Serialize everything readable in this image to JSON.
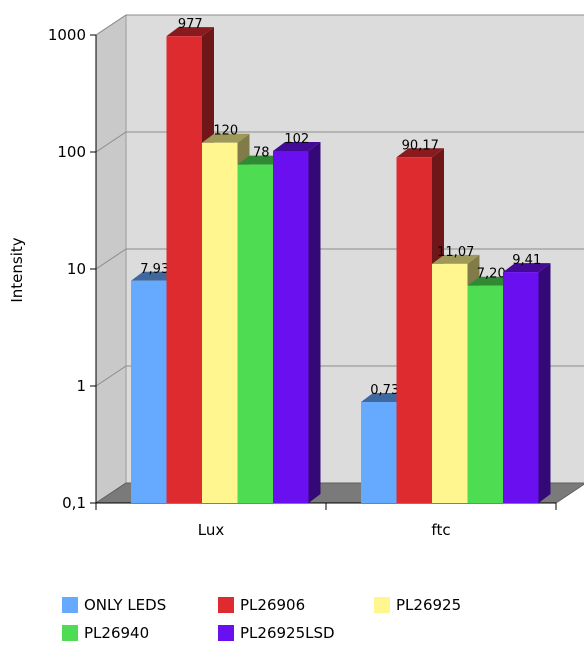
{
  "chart_data": {
    "type": "bar",
    "title": "",
    "xlabel": "",
    "ylabel": "Intensity",
    "yscale": "log",
    "ylim": [
      0.1,
      1000
    ],
    "ytick_labels": [
      "1000",
      "100",
      "10",
      "1",
      "0,1"
    ],
    "grid": true,
    "legend_position": "bottom",
    "categories": [
      "Lux",
      "ftc"
    ],
    "series": [
      {
        "name": "ONLY LEDS",
        "color": "#66AAFF",
        "values": [
          7.93,
          0.73
        ],
        "labels": [
          "7,93",
          "0,73"
        ]
      },
      {
        "name": "PL26906",
        "color": "#DD2B30",
        "values": [
          977,
          90.17
        ],
        "labels": [
          "977",
          "90,17"
        ]
      },
      {
        "name": "PL26925",
        "color": "#FFF690",
        "values": [
          120,
          11.07
        ],
        "labels": [
          "120",
          "11,07"
        ]
      },
      {
        "name": "PL26940",
        "color": "#4EDD52",
        "values": [
          78,
          7.2
        ],
        "labels": [
          "78",
          "7,20"
        ]
      },
      {
        "name": "PL26925LSD",
        "color": "#6A10F0",
        "values": [
          102,
          9.41
        ],
        "labels": [
          "102",
          "9,41"
        ]
      }
    ]
  }
}
